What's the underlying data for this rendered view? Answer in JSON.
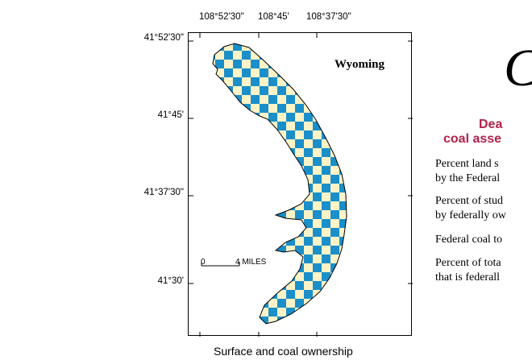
{
  "map": {
    "state_label": "Wyoming",
    "caption": "Surface and coal ownership",
    "longitude_labels": [
      "108°52'30\"",
      "108°45'",
      "108°37'30\""
    ],
    "latitude_labels": [
      "41°52'30\"",
      "41°45'",
      "41°37'30\"",
      "41°30'"
    ],
    "scale": {
      "zero": "0",
      "miles": "4 MILES"
    },
    "pattern_colors": {
      "federal": "#1a8fc9",
      "other": "#fdf3c7"
    }
  },
  "sidebar": {
    "glyph": "C",
    "title_line1": "Dea",
    "title_line2": "coal asse",
    "stats": [
      {
        "line1": "Percent land s",
        "line2": "by the Federal"
      },
      {
        "line1": "Percent of stud",
        "line2": "by federally ow"
      },
      {
        "line1": "Federal coal to",
        "line2": ""
      },
      {
        "line1": "Percent of tota",
        "line2": "that is federall"
      }
    ],
    "title_color": "#b4204a"
  }
}
